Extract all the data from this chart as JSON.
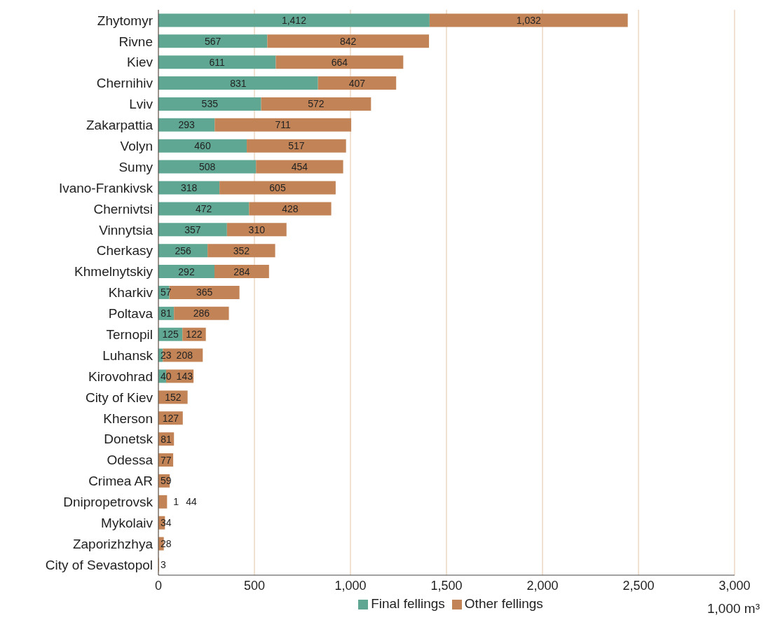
{
  "chart_data": {
    "type": "bar",
    "orientation": "horizontal",
    "stacked": true,
    "xlabel": "1,000 m³",
    "categories": [
      "Zhytomyr",
      "Rivne",
      "Kiev",
      "Chernihiv",
      "Lviv",
      "Zakarpattia",
      "Volyn",
      "Sumy",
      "Ivano-Frankivsk",
      "Chernivtsi",
      "Vinnytsia",
      "Cherkasy",
      "Khmelnytskiy",
      "Kharkiv",
      "Poltava",
      "Ternopil",
      "Luhansk",
      "Kirovohrad",
      "City of Kiev",
      "Kherson",
      "Donetsk",
      "Odessa",
      "Crimea AR",
      "Dnipropetrovsk",
      "Mykolaiv",
      "Zaporizhzhya",
      "City of Sevastopol"
    ],
    "series": [
      {
        "name": "Final fellings",
        "color": "#5fa792",
        "values": [
          1412,
          567,
          611,
          831,
          535,
          293,
          460,
          508,
          318,
          472,
          357,
          256,
          292,
          57,
          81,
          125,
          23,
          40,
          null,
          null,
          null,
          null,
          null,
          1,
          null,
          null,
          null
        ],
        "value_labels": [
          "1,412",
          "567",
          "611",
          "831",
          "535",
          "293",
          "460",
          "508",
          "318",
          "472",
          "357",
          "256",
          "292",
          "57",
          "81",
          "125",
          "23",
          "40",
          null,
          null,
          null,
          null,
          null,
          "1",
          null,
          null,
          null
        ]
      },
      {
        "name": "Other fellings",
        "color": "#c28457",
        "values": [
          1032,
          842,
          664,
          407,
          572,
          711,
          517,
          454,
          605,
          428,
          310,
          352,
          284,
          365,
          286,
          122,
          208,
          143,
          152,
          127,
          81,
          77,
          59,
          44,
          34,
          28,
          3
        ],
        "value_labels": [
          "1,032",
          "842",
          "664",
          "407",
          "572",
          "711",
          "517",
          "454",
          "605",
          "428",
          "310",
          "352",
          "284",
          "365",
          "286",
          "122",
          "208",
          "143",
          "152",
          "127",
          "81",
          "77",
          "59",
          "44",
          "34",
          "28",
          "3"
        ]
      }
    ],
    "xlim": [
      0,
      3000
    ],
    "xticks": [
      0,
      500,
      {
        "value": 1000,
        "label": "1,000"
      },
      {
        "value": 1500,
        "label": "1,500"
      },
      {
        "value": 2000,
        "label": "2,000"
      },
      {
        "value": 2500,
        "label": "2,500"
      },
      {
        "value": 3000,
        "label": "3,000"
      }
    ],
    "grid": "x",
    "legend": "bottom"
  }
}
